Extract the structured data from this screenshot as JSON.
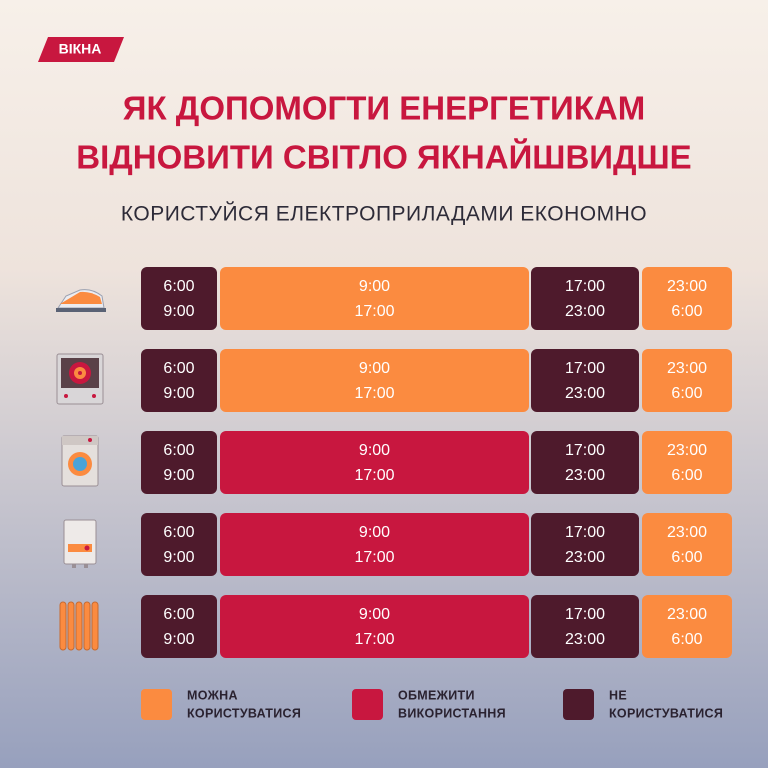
{
  "logo": "ВІКНА",
  "title_lines": [
    "ЯК ДОПОМОГТИ ЕНЕРГЕТИКАМ",
    "ВІДНОВИТИ СВІТЛО ЯКНАЙШВИДШЕ"
  ],
  "subtitle": "КОРИСТУЙСЯ ЕЛЕКТРОПРИЛАДАМИ ЕКОНОМНО",
  "rows": [
    [
      {
        "from": "6:00",
        "to": "9:00",
        "color": "#4e1a2c"
      },
      {
        "from": "9:00",
        "to": "17:00",
        "color": "#fb8b40"
      },
      {
        "from": "17:00",
        "to": "23:00",
        "color": "#4e1a2c"
      },
      {
        "from": "23:00",
        "to": "6:00",
        "color": "#fb8b40"
      }
    ],
    [
      {
        "from": "6:00",
        "to": "9:00",
        "color": "#4e1a2c"
      },
      {
        "from": "9:00",
        "to": "17:00",
        "color": "#fb8b40"
      },
      {
        "from": "17:00",
        "to": "23:00",
        "color": "#4e1a2c"
      },
      {
        "from": "23:00",
        "to": "6:00",
        "color": "#fb8b40"
      }
    ],
    [
      {
        "from": "6:00",
        "to": "9:00",
        "color": "#4e1a2c"
      },
      {
        "from": "9:00",
        "to": "17:00",
        "color": "#c8173f"
      },
      {
        "from": "17:00",
        "to": "23:00",
        "color": "#4e1a2c"
      },
      {
        "from": "23:00",
        "to": "6:00",
        "color": "#fb8b40"
      }
    ],
    [
      {
        "from": "6:00",
        "to": "9:00",
        "color": "#4e1a2c"
      },
      {
        "from": "9:00",
        "to": "17:00",
        "color": "#c8173f"
      },
      {
        "from": "17:00",
        "to": "23:00",
        "color": "#4e1a2c"
      },
      {
        "from": "23:00",
        "to": "6:00",
        "color": "#fb8b40"
      }
    ],
    [
      {
        "from": "6:00",
        "to": "9:00",
        "color": "#4e1a2c"
      },
      {
        "from": "9:00",
        "to": "17:00",
        "color": "#c8173f"
      },
      {
        "from": "17:00",
        "to": "23:00",
        "color": "#4e1a2c"
      },
      {
        "from": "23:00",
        "to": "6:00",
        "color": "#fb8b40"
      }
    ]
  ],
  "legend": [
    {
      "lines": [
        "МОЖНА",
        "КОРИСТУВАТИСЯ"
      ],
      "color": "#fb8b40"
    },
    {
      "lines": [
        "ОБМЕЖИТИ",
        "ВИКОРИСТАННЯ"
      ],
      "color": "#c8173f"
    },
    {
      "lines": [
        "НЕ",
        "КОРИСТУВАТИСЯ"
      ],
      "color": "#4e1a2c"
    }
  ]
}
